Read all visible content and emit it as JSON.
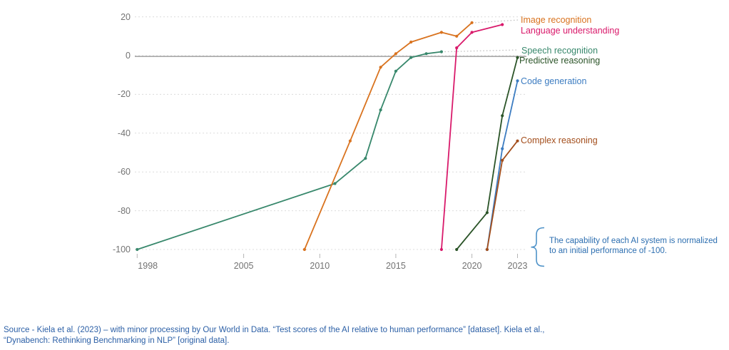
{
  "chart": {
    "annotation": {
      "line1": "The capability of each AI system is normalized",
      "line2": "to an initial performance of -100."
    },
    "source": {
      "line1": "Source - Kiela et al. (2023) – with minor processing by Our World in Data. “Test scores of the AI relative to human performance” [dataset]. Kiela et al.,",
      "line2": "“Dynabench: Rethinking Benchmarking in NLP” [original data]."
    },
    "colors": {
      "annotation_text": "#2C6EB0",
      "annotation_brace": "#4E92C8",
      "source_text": "#2B5FA6",
      "axis_text": "#737373",
      "gridline": "#DCDCDC",
      "zero_line": "#A9A9A9"
    }
  },
  "chart_data": {
    "type": "line",
    "title": "",
    "xlabel": "",
    "ylabel": "",
    "xlim": [
      1997.7,
      2023.6
    ],
    "ylim": [
      -104,
      22
    ],
    "xticks": [
      1998,
      2005,
      2010,
      2015,
      2020,
      2023
    ],
    "yticks": [
      20,
      0,
      -20,
      -40,
      -60,
      -80,
      -100
    ],
    "grid": "horizontal-dashed",
    "zero_line": true,
    "legend_position": "right-of-line-ends",
    "series": [
      {
        "id": "speech",
        "name": "Speech recognition",
        "color": "#38886C",
        "points": [
          [
            1998,
            -100
          ],
          [
            2011,
            -66
          ],
          [
            2013,
            -53
          ],
          [
            2014,
            -28
          ],
          [
            2015,
            -8
          ],
          [
            2016,
            -1
          ],
          [
            2017,
            1
          ],
          [
            2018,
            2
          ]
        ]
      },
      {
        "id": "image",
        "name": "Image recognition",
        "color": "#D9731F",
        "points": [
          [
            2009,
            -100
          ],
          [
            2012,
            -44
          ],
          [
            2014,
            -6
          ],
          [
            2015,
            1
          ],
          [
            2016,
            7
          ],
          [
            2018,
            12
          ],
          [
            2019,
            10
          ],
          [
            2020,
            17
          ]
        ]
      },
      {
        "id": "language",
        "name": "Language understanding",
        "color": "#D91A6B",
        "points": [
          [
            2018,
            -100
          ],
          [
            2019,
            4
          ],
          [
            2020,
            12
          ],
          [
            2022,
            16
          ]
        ]
      },
      {
        "id": "predictive",
        "name": "Predictive reasoning",
        "color": "#2B5428",
        "points": [
          [
            2019,
            -100
          ],
          [
            2021,
            -81
          ],
          [
            2022,
            -31
          ],
          [
            2023,
            -1
          ]
        ]
      },
      {
        "id": "code",
        "name": "Code generation",
        "color": "#3C7CC1",
        "points": [
          [
            2021,
            -100
          ],
          [
            2022,
            -48
          ],
          [
            2023,
            -13
          ]
        ]
      },
      {
        "id": "complex",
        "name": "Complex reasoning",
        "color": "#A34E1C",
        "points": [
          [
            2021,
            -100
          ],
          [
            2022,
            -54
          ],
          [
            2023,
            -44
          ]
        ]
      }
    ]
  }
}
